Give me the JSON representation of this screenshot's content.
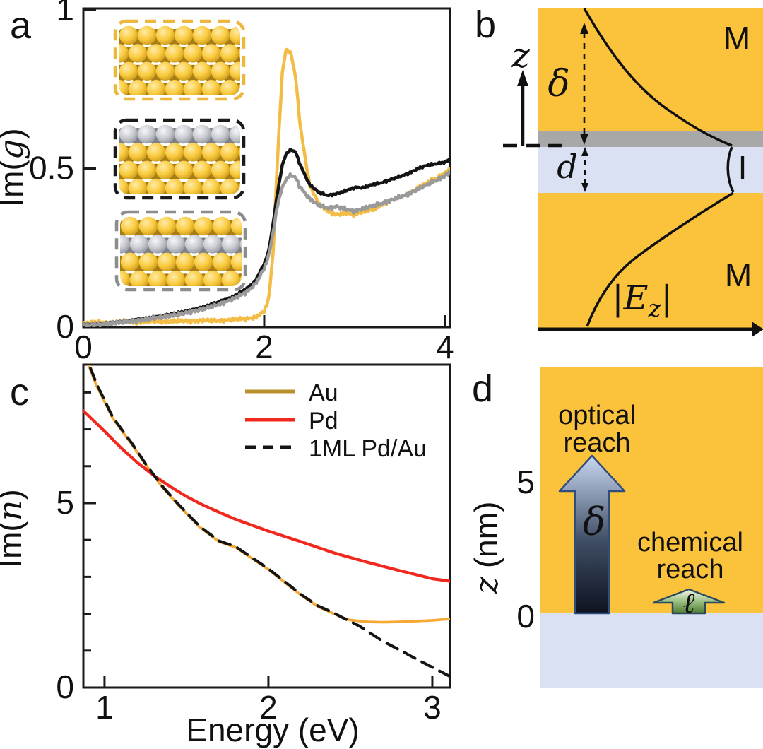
{
  "figure": {
    "panel_labels": {
      "a": "a",
      "b": "b",
      "c": "c",
      "d": "d"
    }
  },
  "colors": {
    "metal_orange": "#FBC23C",
    "insulator_blue": "#D9E1F2",
    "pd_gray": "#A8A8A8",
    "axis_black": "#1A1A1A",
    "gold_curve": "#F3BD45",
    "black_curve": "#141414",
    "gray_curve": "#9A9A9A",
    "au_curve_c": "#F6A833",
    "au_legend": "#B8912C",
    "pd_red": "#F0281E"
  },
  "panels": {
    "a": {
      "ylabel_prefix": "Im(",
      "ylabel_var": "g",
      "ylabel_suffix": ")",
      "insets": [
        {
          "name": "pure Au slab",
          "border_color": "#EDB73E",
          "rows": [
            "Au",
            "Au",
            "Au",
            "Au"
          ]
        },
        {
          "name": "1ML Pd on Au",
          "border_color": "#1A1A1A",
          "rows": [
            "Pd",
            "Au",
            "Au",
            "Au"
          ]
        },
        {
          "name": "subsurface Pd in Au",
          "border_color": "#8C8C8C",
          "rows": [
            "Au",
            "Pd",
            "Au",
            "Au"
          ]
        }
      ]
    },
    "b": {
      "metal_top": "M",
      "metal_bottom": "M",
      "insulator": "I",
      "z_var": "z",
      "delta_var": "δ",
      "d_var": "d",
      "field_open": "|",
      "field_E": "E",
      "field_sub": "z",
      "field_close": "|"
    },
    "c": {
      "ylabel_prefix": "Im(",
      "ylabel_var": "n",
      "ylabel_suffix": ")",
      "xlabel": "Energy (eV)",
      "legend": [
        {
          "label": "Au"
        },
        {
          "label": "Pd"
        },
        {
          "label": "1ML Pd/Au"
        }
      ]
    },
    "d": {
      "optical_line1": "optical",
      "optical_line2": "reach",
      "chemical_line1": "chemical",
      "chemical_line2": "reach",
      "delta_var": "δ",
      "ell_var": "ℓ",
      "z_var": "z",
      "z_unit": "(nm)",
      "tick_5": "5",
      "tick_0": "0"
    }
  },
  "chart_data": [
    {
      "id": "panel-a",
      "type": "line",
      "title": "",
      "xlabel": "",
      "ylabel": "Im(g)",
      "xlim": [
        0,
        4.055
      ],
      "ylim": [
        0,
        1.0045
      ],
      "grid": false,
      "x_ticks": [
        {
          "v": 0,
          "label": "0"
        },
        {
          "v": 2,
          "label": "2"
        },
        {
          "v": 4,
          "label": "4"
        }
      ],
      "y_ticks": [
        {
          "v": 0,
          "label": "0"
        },
        {
          "v": 0.5,
          "label": "0.5"
        },
        {
          "v": 1,
          "label": "1"
        }
      ],
      "series": [
        {
          "name": "gold-pure-Au",
          "color": "#F3BD45",
          "width": 4.5,
          "noise": 0.007,
          "x": [
            0,
            0.15,
            0.3,
            0.45,
            0.6,
            0.75,
            0.9,
            1.05,
            1.2,
            1.35,
            1.5,
            1.65,
            1.8,
            1.9,
            2.0,
            2.05,
            2.1,
            2.15,
            2.2,
            2.24,
            2.3,
            2.35,
            2.4,
            2.5,
            2.6,
            2.7,
            2.8,
            2.9,
            3.0,
            3.1,
            3.2,
            3.3,
            3.4,
            3.5,
            3.6,
            3.7,
            3.8,
            3.9,
            4.0,
            4.055
          ],
          "y": [
            0.012,
            0.016,
            0.013,
            0.018,
            0.015,
            0.019,
            0.017,
            0.02,
            0.019,
            0.022,
            0.02,
            0.024,
            0.027,
            0.03,
            0.05,
            0.09,
            0.24,
            0.55,
            0.8,
            0.875,
            0.86,
            0.78,
            0.63,
            0.45,
            0.39,
            0.365,
            0.355,
            0.36,
            0.355,
            0.365,
            0.37,
            0.385,
            0.4,
            0.41,
            0.42,
            0.44,
            0.455,
            0.47,
            0.485,
            0.5
          ]
        },
        {
          "name": "black-1ML-Pd-on-Au",
          "color": "#141414",
          "width": 4.5,
          "noise": 0.004,
          "x": [
            0,
            0.15,
            0.3,
            0.45,
            0.6,
            0.75,
            0.9,
            1.05,
            1.2,
            1.35,
            1.5,
            1.65,
            1.8,
            1.9,
            2.0,
            2.05,
            2.1,
            2.15,
            2.2,
            2.24,
            2.3,
            2.35,
            2.4,
            2.5,
            2.6,
            2.7,
            2.8,
            2.9,
            3.0,
            3.1,
            3.2,
            3.3,
            3.4,
            3.5,
            3.6,
            3.7,
            3.8,
            3.9,
            4.0,
            4.055
          ],
          "y": [
            0.008,
            0.01,
            0.014,
            0.018,
            0.024,
            0.03,
            0.037,
            0.045,
            0.054,
            0.065,
            0.08,
            0.095,
            0.12,
            0.145,
            0.2,
            0.24,
            0.33,
            0.43,
            0.51,
            0.545,
            0.56,
            0.55,
            0.51,
            0.45,
            0.425,
            0.415,
            0.42,
            0.43,
            0.44,
            0.44,
            0.45,
            0.455,
            0.465,
            0.475,
            0.485,
            0.5,
            0.51,
            0.515,
            0.52,
            0.53
          ]
        },
        {
          "name": "gray-subsurface-Pd",
          "color": "#9A9A9A",
          "width": 4.5,
          "noise": 0.007,
          "x": [
            0,
            0.15,
            0.3,
            0.45,
            0.6,
            0.75,
            0.9,
            1.05,
            1.2,
            1.35,
            1.5,
            1.65,
            1.8,
            1.9,
            2.0,
            2.05,
            2.1,
            2.15,
            2.2,
            2.24,
            2.3,
            2.35,
            2.4,
            2.5,
            2.6,
            2.7,
            2.8,
            2.9,
            3.0,
            3.1,
            3.2,
            3.3,
            3.4,
            3.5,
            3.6,
            3.7,
            3.8,
            3.9,
            4.0,
            4.055
          ],
          "y": [
            0.006,
            0.008,
            0.012,
            0.016,
            0.021,
            0.027,
            0.033,
            0.04,
            0.049,
            0.059,
            0.072,
            0.088,
            0.11,
            0.135,
            0.185,
            0.225,
            0.3,
            0.39,
            0.44,
            0.465,
            0.48,
            0.47,
            0.44,
            0.405,
            0.385,
            0.375,
            0.38,
            0.372,
            0.365,
            0.375,
            0.382,
            0.39,
            0.4,
            0.41,
            0.42,
            0.435,
            0.45,
            0.462,
            0.478,
            0.49
          ]
        }
      ]
    },
    {
      "id": "panel-c",
      "type": "line",
      "title": "",
      "xlabel": "Energy (eV)",
      "ylabel": "Im(n)",
      "xlim": [
        0.871,
        3.108
      ],
      "ylim": [
        0,
        8.754
      ],
      "grid": false,
      "legend_position": "top-center-inside",
      "x_ticks": [
        {
          "v": 1,
          "label": "1"
        },
        {
          "v": 2,
          "label": "2"
        },
        {
          "v": 3,
          "label": "3"
        }
      ],
      "y_ticks": [
        {
          "v": 0,
          "label": "0"
        },
        {
          "v": 1
        },
        {
          "v": 2
        },
        {
          "v": 3
        },
        {
          "v": 4
        },
        {
          "v": 5,
          "label": "5"
        },
        {
          "v": 6
        },
        {
          "v": 7
        },
        {
          "v": 8
        }
      ],
      "series": [
        {
          "name": "Au",
          "color": "#F6A833",
          "legend_color": "#B8912C",
          "width": 3.6,
          "noise": 0,
          "x": [
            0.871,
            0.95,
            1.05,
            1.17,
            1.25,
            1.35,
            1.45,
            1.58,
            1.7,
            1.8,
            1.9,
            2.0,
            2.1,
            2.2,
            2.3,
            2.4,
            2.45,
            2.5,
            2.6,
            2.7,
            2.8,
            2.9,
            3.0,
            3.108
          ],
          "y": [
            9.1,
            8.2,
            7.3,
            6.57,
            6.05,
            5.45,
            4.95,
            4.35,
            3.95,
            3.8,
            3.5,
            3.2,
            2.85,
            2.5,
            2.2,
            2.0,
            1.9,
            1.83,
            1.78,
            1.77,
            1.78,
            1.8,
            1.82,
            1.86
          ]
        },
        {
          "name": "Pd",
          "color": "#F0281E",
          "width": 4.2,
          "noise": 0,
          "x": [
            0.871,
            1.0,
            1.1,
            1.2,
            1.3,
            1.4,
            1.5,
            1.6,
            1.7,
            1.8,
            1.9,
            2.0,
            2.2,
            2.4,
            2.6,
            2.8,
            3.0,
            3.108
          ],
          "y": [
            7.5,
            6.95,
            6.5,
            6.1,
            5.75,
            5.45,
            5.18,
            4.95,
            4.75,
            4.56,
            4.4,
            4.24,
            3.95,
            3.65,
            3.4,
            3.17,
            2.95,
            2.88
          ]
        },
        {
          "name": "1ML Pd/Au",
          "color": "#141414",
          "width": 4,
          "dash": "17,11",
          "noise": 0,
          "x": [
            0.871,
            0.95,
            1.05,
            1.17,
            1.25,
            1.35,
            1.45,
            1.58,
            1.7,
            1.8,
            1.9,
            2.0,
            2.1,
            2.2,
            2.3,
            2.4,
            2.45,
            2.55,
            2.7,
            2.8,
            2.9,
            3.0,
            3.108
          ],
          "y": [
            9.15,
            8.25,
            7.33,
            6.6,
            6.07,
            5.47,
            4.97,
            4.37,
            3.97,
            3.82,
            3.52,
            3.22,
            2.87,
            2.52,
            2.22,
            2.02,
            1.9,
            1.68,
            1.25,
            1.02,
            0.78,
            0.55,
            0.3
          ]
        }
      ]
    }
  ]
}
